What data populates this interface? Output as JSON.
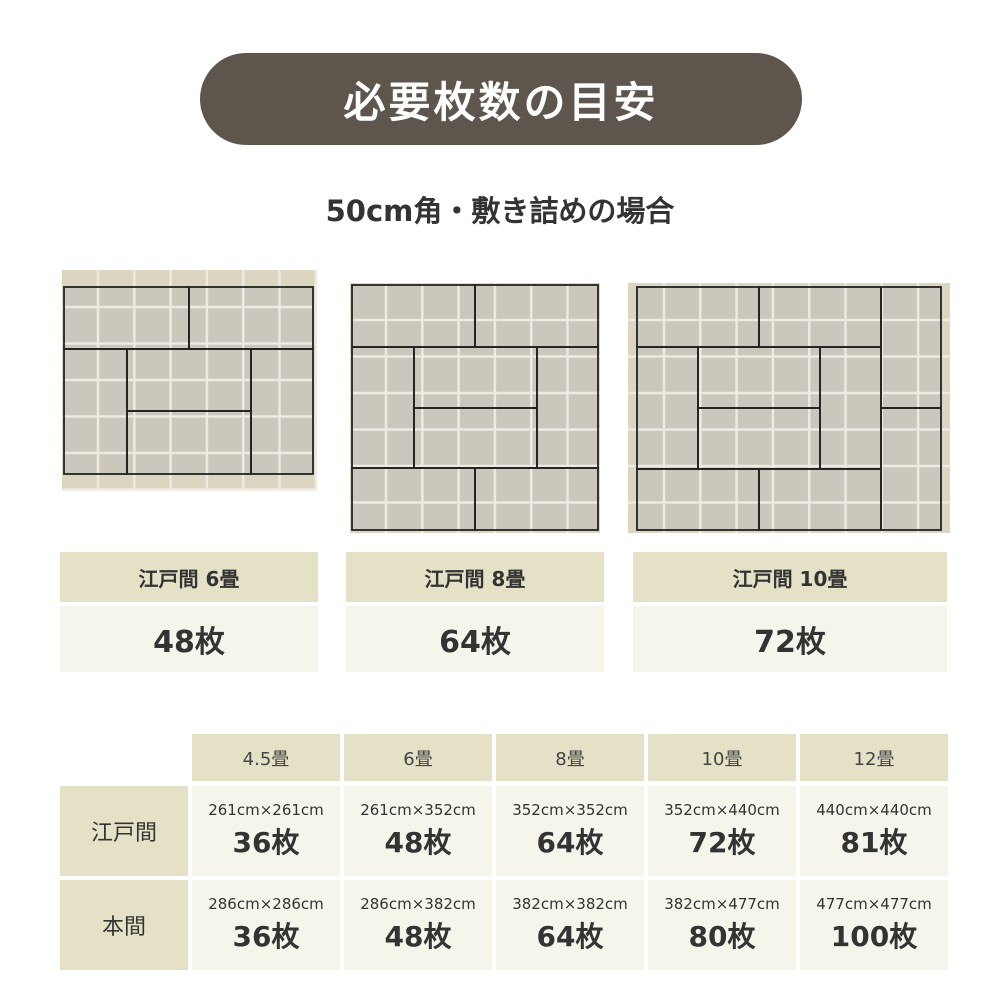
{
  "title": "必要枚数の目安",
  "subtitle": "50cm角・敷き詰めの場合",
  "cards": [
    {
      "label": "江戸間 6畳",
      "count": "48枚"
    },
    {
      "label": "江戸間 8畳",
      "count": "64枚"
    },
    {
      "label": "江戸間 10畳",
      "count": "72枚"
    }
  ],
  "table": {
    "columns": [
      "4.5畳",
      "6畳",
      "8畳",
      "10畳",
      "12畳"
    ],
    "rows": [
      {
        "label": "江戸間",
        "cells": [
          {
            "dim": "261cm×261cm",
            "count": "36枚"
          },
          {
            "dim": "261cm×352cm",
            "count": "48枚"
          },
          {
            "dim": "352cm×352cm",
            "count": "64枚"
          },
          {
            "dim": "352cm×440cm",
            "count": "72枚"
          },
          {
            "dim": "440cm×440cm",
            "count": "81枚"
          }
        ]
      },
      {
        "label": "本間",
        "cells": [
          {
            "dim": "286cm×286cm",
            "count": "36枚"
          },
          {
            "dim": "286cm×382cm",
            "count": "48枚"
          },
          {
            "dim": "382cm×382cm",
            "count": "64枚"
          },
          {
            "dim": "382cm×477cm",
            "count": "80枚"
          },
          {
            "dim": "477cm×477cm",
            "count": "100枚"
          }
        ]
      }
    ]
  },
  "colors": {
    "pill": "#5e564c",
    "label_bg": "#e5e1c7",
    "value_bg": "#f6f5ec",
    "tile": "#cbc7bd",
    "tile_edge": "#dcd5c0"
  }
}
